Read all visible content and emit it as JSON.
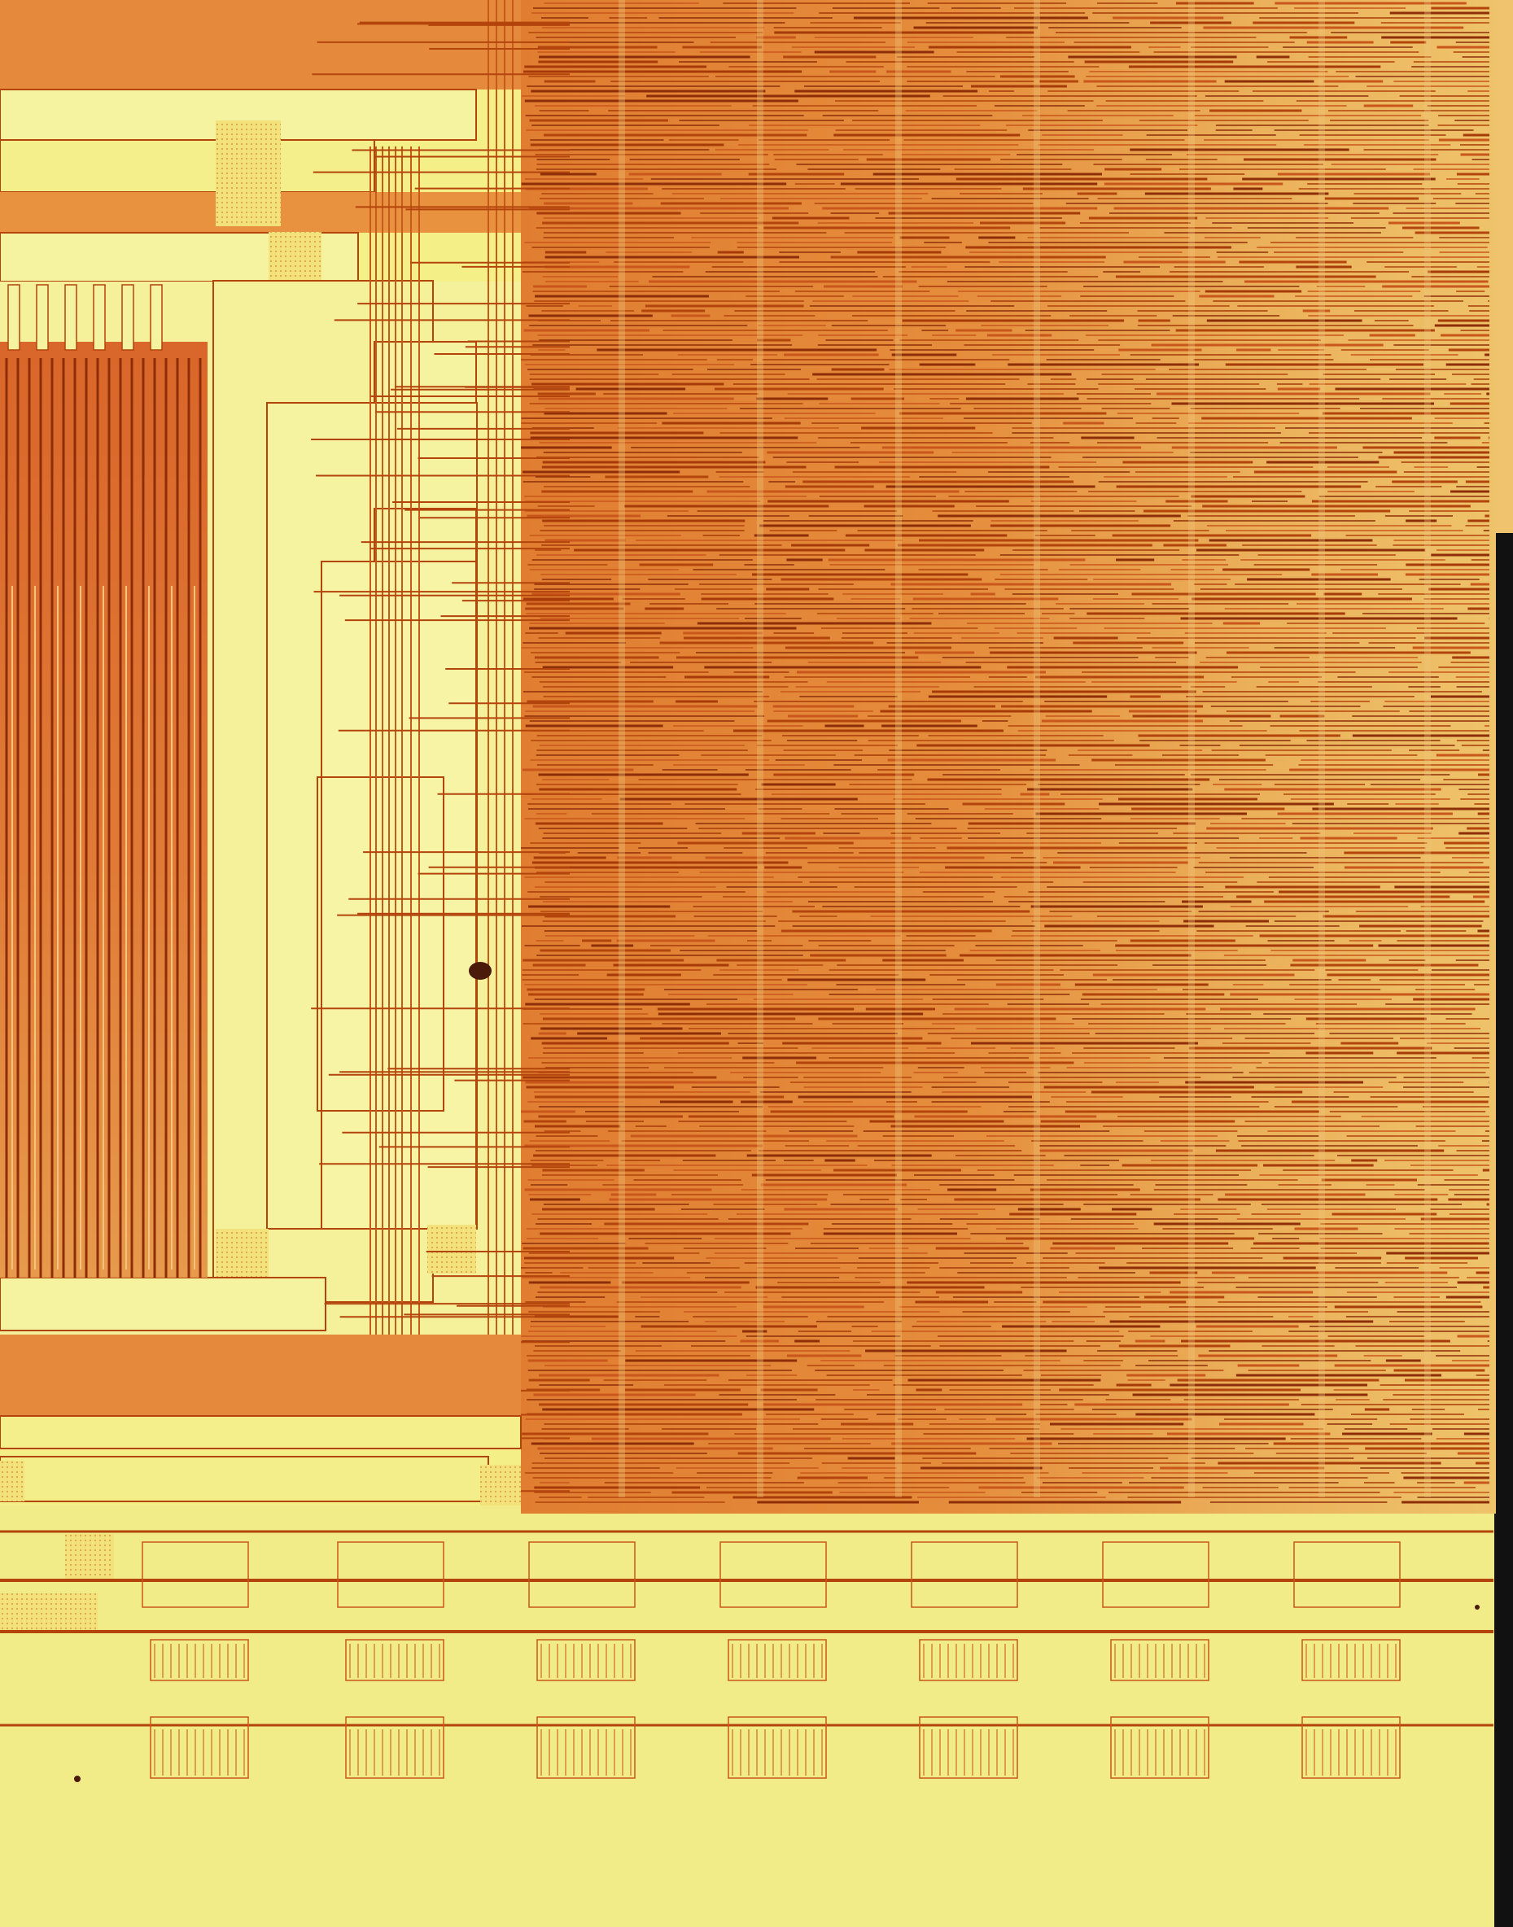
{
  "image": {
    "subject": "die-micrograph",
    "colors": {
      "background": "#f4ef86",
      "metal_dark": "#b3440c",
      "metal_orange": "#de7a2c",
      "metal_light": "#e89947",
      "pale_yellow": "#f6f3a0",
      "bus_yellow": "#f2e77d",
      "gold_tint": "#e7b05a",
      "edge_black": "#111111",
      "speck": "#4a1a0a"
    }
  }
}
